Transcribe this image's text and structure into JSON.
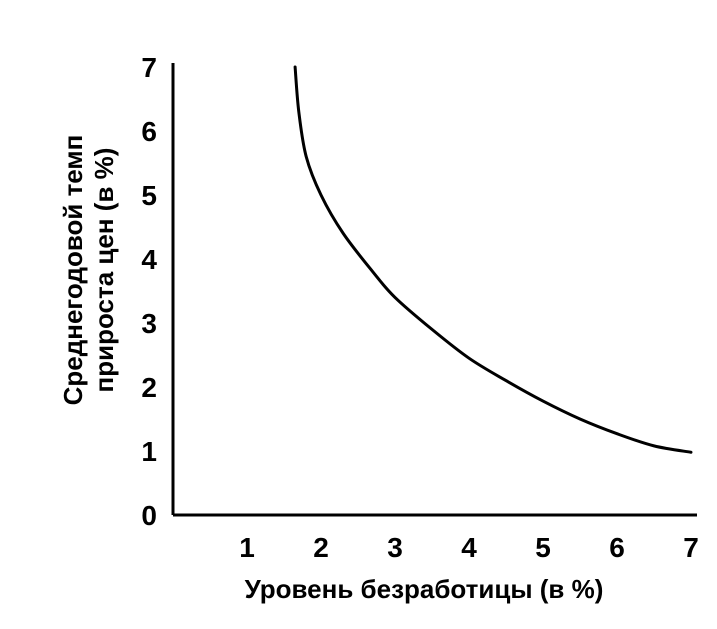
{
  "chart_data": {
    "type": "line",
    "xlabel": "Уровень безработицы (в %)",
    "ylabel_lines": [
      "Среднегодовой темп",
      "прироста цен (в %)"
    ],
    "xlim": [
      0,
      7
    ],
    "ylim": [
      0,
      7
    ],
    "x_ticks": [
      1,
      2,
      3,
      4,
      5,
      6,
      7
    ],
    "y_ticks": [
      0,
      1,
      2,
      3,
      4,
      5,
      6,
      7
    ],
    "x_tick_labels": [
      "1",
      "2",
      "3",
      "4",
      "5",
      "6",
      "7"
    ],
    "y_tick_labels": [
      "0",
      "1",
      "2",
      "3",
      "4",
      "5",
      "6",
      "7"
    ],
    "grid": false,
    "series": [
      {
        "color": "#000000",
        "points": [
          {
            "x": 1.65,
            "y": 7.0
          },
          {
            "x": 1.7,
            "y": 6.3
          },
          {
            "x": 1.8,
            "y": 5.6
          },
          {
            "x": 2.0,
            "y": 5.0
          },
          {
            "x": 2.3,
            "y": 4.4
          },
          {
            "x": 2.7,
            "y": 3.8
          },
          {
            "x": 3.0,
            "y": 3.4
          },
          {
            "x": 3.5,
            "y": 2.9
          },
          {
            "x": 4.0,
            "y": 2.45
          },
          {
            "x": 4.5,
            "y": 2.1
          },
          {
            "x": 5.0,
            "y": 1.78
          },
          {
            "x": 5.5,
            "y": 1.5
          },
          {
            "x": 6.0,
            "y": 1.27
          },
          {
            "x": 6.5,
            "y": 1.08
          },
          {
            "x": 7.0,
            "y": 0.98
          }
        ]
      }
    ]
  }
}
